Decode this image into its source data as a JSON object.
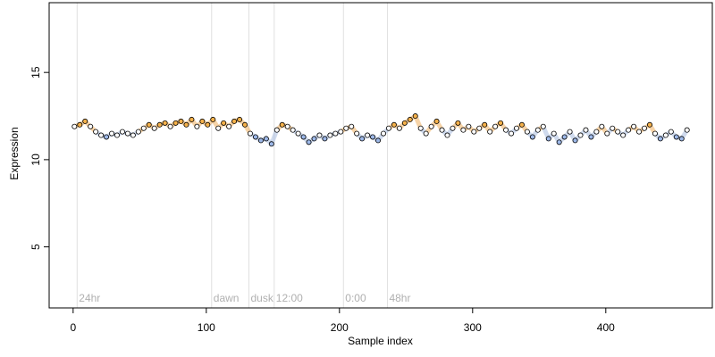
{
  "chart_data": {
    "type": "scatter",
    "title": "",
    "xlabel": "Sample index",
    "ylabel": "Expression",
    "xlim": [
      -18,
      480
    ],
    "ylim": [
      1.5,
      19
    ],
    "x_ticks": [
      0,
      100,
      200,
      300,
      400
    ],
    "y_ticks": [
      5,
      10,
      15
    ],
    "x_tick_labels": [
      "0",
      "100",
      "200",
      "300",
      "400"
    ],
    "y_tick_labels": [
      "5",
      "10",
      "15"
    ],
    "grid": false,
    "legend": "none",
    "markers": [
      {
        "x": 3,
        "label": "24hr"
      },
      {
        "x": 104,
        "label": "dawn"
      },
      {
        "x": 132,
        "label": "dusk"
      },
      {
        "x": 151,
        "label": "12:00"
      },
      {
        "x": 203,
        "label": "0:00"
      },
      {
        "x": 236,
        "label": "48hr"
      }
    ],
    "colors": {
      "axis": "#000000",
      "marker_line": "#e0e0e0",
      "marker_text": "#b0b0b0",
      "point_high": "#f5b14a",
      "point_low": "#9db8e8",
      "point_neutral": "#ffffff",
      "point_edge": "#000000",
      "band_high": "#f0b060",
      "band_low": "#a8bde0"
    },
    "series": [
      {
        "values": [
          {
            "x": 1,
            "y": 11.9
          },
          {
            "x": 5,
            "y": 12.0
          },
          {
            "x": 9,
            "y": 12.2
          },
          {
            "x": 13,
            "y": 11.9
          },
          {
            "x": 17,
            "y": 11.6
          },
          {
            "x": 21,
            "y": 11.4
          },
          {
            "x": 25,
            "y": 11.3
          },
          {
            "x": 29,
            "y": 11.5
          },
          {
            "x": 33,
            "y": 11.4
          },
          {
            "x": 37,
            "y": 11.6
          },
          {
            "x": 41,
            "y": 11.5
          },
          {
            "x": 45,
            "y": 11.4
          },
          {
            "x": 49,
            "y": 11.6
          },
          {
            "x": 53,
            "y": 11.8
          },
          {
            "x": 57,
            "y": 12.0
          },
          {
            "x": 61,
            "y": 11.8
          },
          {
            "x": 65,
            "y": 12.0
          },
          {
            "x": 69,
            "y": 12.1
          },
          {
            "x": 73,
            "y": 11.9
          },
          {
            "x": 77,
            "y": 12.1
          },
          {
            "x": 81,
            "y": 12.2
          },
          {
            "x": 85,
            "y": 12.0
          },
          {
            "x": 89,
            "y": 12.3
          },
          {
            "x": 93,
            "y": 11.9
          },
          {
            "x": 97,
            "y": 12.2
          },
          {
            "x": 101,
            "y": 12.0
          },
          {
            "x": 105,
            "y": 12.3
          },
          {
            "x": 109,
            "y": 11.8
          },
          {
            "x": 113,
            "y": 12.1
          },
          {
            "x": 117,
            "y": 11.9
          },
          {
            "x": 121,
            "y": 12.2
          },
          {
            "x": 125,
            "y": 12.3
          },
          {
            "x": 129,
            "y": 12.0
          },
          {
            "x": 133,
            "y": 11.5
          },
          {
            "x": 137,
            "y": 11.3
          },
          {
            "x": 141,
            "y": 11.1
          },
          {
            "x": 145,
            "y": 11.2
          },
          {
            "x": 149,
            "y": 10.9
          },
          {
            "x": 153,
            "y": 11.7
          },
          {
            "x": 157,
            "y": 12.0
          },
          {
            "x": 161,
            "y": 11.9
          },
          {
            "x": 165,
            "y": 11.7
          },
          {
            "x": 169,
            "y": 11.5
          },
          {
            "x": 173,
            "y": 11.3
          },
          {
            "x": 177,
            "y": 11.0
          },
          {
            "x": 181,
            "y": 11.2
          },
          {
            "x": 185,
            "y": 11.4
          },
          {
            "x": 189,
            "y": 11.2
          },
          {
            "x": 193,
            "y": 11.4
          },
          {
            "x": 197,
            "y": 11.5
          },
          {
            "x": 201,
            "y": 11.6
          },
          {
            "x": 205,
            "y": 11.8
          },
          {
            "x": 209,
            "y": 11.9
          },
          {
            "x": 213,
            "y": 11.5
          },
          {
            "x": 217,
            "y": 11.2
          },
          {
            "x": 221,
            "y": 11.4
          },
          {
            "x": 225,
            "y": 11.3
          },
          {
            "x": 229,
            "y": 11.1
          },
          {
            "x": 233,
            "y": 11.5
          },
          {
            "x": 237,
            "y": 11.8
          },
          {
            "x": 241,
            "y": 12.0
          },
          {
            "x": 245,
            "y": 11.8
          },
          {
            "x": 249,
            "y": 12.1
          },
          {
            "x": 253,
            "y": 12.3
          },
          {
            "x": 257,
            "y": 12.5
          },
          {
            "x": 261,
            "y": 11.8
          },
          {
            "x": 265,
            "y": 11.5
          },
          {
            "x": 269,
            "y": 11.9
          },
          {
            "x": 273,
            "y": 12.2
          },
          {
            "x": 277,
            "y": 11.7
          },
          {
            "x": 281,
            "y": 11.4
          },
          {
            "x": 285,
            "y": 11.8
          },
          {
            "x": 289,
            "y": 12.1
          },
          {
            "x": 293,
            "y": 11.7
          },
          {
            "x": 297,
            "y": 11.9
          },
          {
            "x": 301,
            "y": 11.6
          },
          {
            "x": 305,
            "y": 11.8
          },
          {
            "x": 309,
            "y": 12.0
          },
          {
            "x": 313,
            "y": 11.6
          },
          {
            "x": 317,
            "y": 11.9
          },
          {
            "x": 321,
            "y": 12.1
          },
          {
            "x": 325,
            "y": 11.7
          },
          {
            "x": 329,
            "y": 11.5
          },
          {
            "x": 333,
            "y": 11.8
          },
          {
            "x": 337,
            "y": 12.0
          },
          {
            "x": 341,
            "y": 11.6
          },
          {
            "x": 345,
            "y": 11.3
          },
          {
            "x": 349,
            "y": 11.7
          },
          {
            "x": 353,
            "y": 11.9
          },
          {
            "x": 357,
            "y": 11.2
          },
          {
            "x": 361,
            "y": 11.5
          },
          {
            "x": 365,
            "y": 11.0
          },
          {
            "x": 369,
            "y": 11.3
          },
          {
            "x": 373,
            "y": 11.6
          },
          {
            "x": 377,
            "y": 11.1
          },
          {
            "x": 381,
            "y": 11.4
          },
          {
            "x": 385,
            "y": 11.7
          },
          {
            "x": 389,
            "y": 11.3
          },
          {
            "x": 393,
            "y": 11.6
          },
          {
            "x": 397,
            "y": 11.9
          },
          {
            "x": 401,
            "y": 11.5
          },
          {
            "x": 405,
            "y": 11.8
          },
          {
            "x": 409,
            "y": 11.6
          },
          {
            "x": 413,
            "y": 11.4
          },
          {
            "x": 417,
            "y": 11.7
          },
          {
            "x": 421,
            "y": 11.9
          },
          {
            "x": 425,
            "y": 11.6
          },
          {
            "x": 429,
            "y": 11.8
          },
          {
            "x": 433,
            "y": 12.0
          },
          {
            "x": 437,
            "y": 11.5
          },
          {
            "x": 441,
            "y": 11.2
          },
          {
            "x": 445,
            "y": 11.4
          },
          {
            "x": 449,
            "y": 11.6
          },
          {
            "x": 453,
            "y": 11.3
          },
          {
            "x": 457,
            "y": 11.2
          },
          {
            "x": 461,
            "y": 11.7
          }
        ]
      }
    ]
  }
}
